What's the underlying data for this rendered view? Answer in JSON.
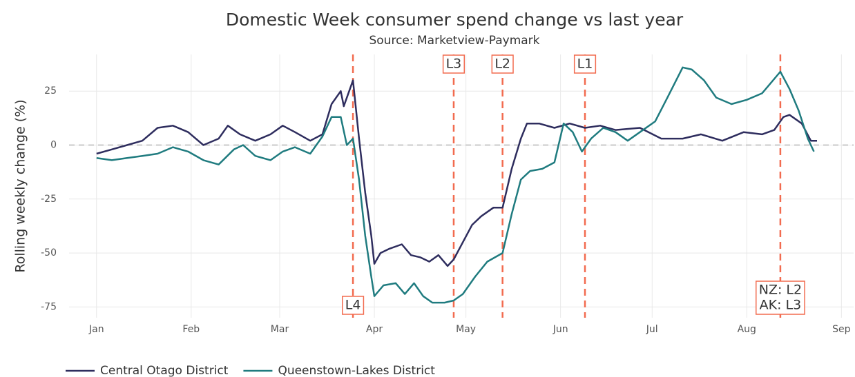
{
  "chart_data": {
    "type": "line",
    "title": "Domestic Week consumer spend change vs last year",
    "subtitle": "Source: Marketview-Paymark",
    "y_label": "Rolling weekly change (%)",
    "xlim": [
      -9,
      248
    ],
    "ylim": [
      -80,
      42
    ],
    "xticks": [
      {
        "value": 0,
        "label": "Jan"
      },
      {
        "value": 31,
        "label": "Feb"
      },
      {
        "value": 60,
        "label": "Mar"
      },
      {
        "value": 91,
        "label": "Apr"
      },
      {
        "value": 121,
        "label": "May"
      },
      {
        "value": 152,
        "label": "Jun"
      },
      {
        "value": 182,
        "label": "Jul"
      },
      {
        "value": 213,
        "label": "Aug"
      },
      {
        "value": 244,
        "label": "Sep"
      }
    ],
    "yticks": [
      -75,
      -50,
      -25,
      0,
      25
    ],
    "grid": true,
    "hline": 0,
    "annotations": [
      {
        "x": 84,
        "label": [
          "L4"
        ],
        "position": "bottom"
      },
      {
        "x": 117,
        "label": [
          "L3"
        ],
        "position": "top"
      },
      {
        "x": 133,
        "label": [
          "L2"
        ],
        "position": "top"
      },
      {
        "x": 160,
        "label": [
          "L1"
        ],
        "position": "top"
      },
      {
        "x": 224,
        "label": [
          "NZ: L2",
          "AK: L3"
        ],
        "position": "bottom"
      }
    ],
    "annotation_color": "#f26b4f",
    "legend": "bottom",
    "series": [
      {
        "name": "Central Otago District",
        "color": "#2e2d5e",
        "x": [
          0,
          5,
          10,
          15,
          20,
          25,
          30,
          35,
          40,
          43,
          47,
          52,
          57,
          61,
          65,
          70,
          74,
          77,
          80,
          81,
          83,
          84,
          86,
          88,
          90,
          91,
          93,
          96,
          100,
          103,
          106,
          109,
          112,
          115,
          117,
          120,
          123,
          126,
          130,
          133,
          136,
          139,
          141,
          145,
          150,
          155,
          160,
          165,
          170,
          178,
          185,
          192,
          198,
          205,
          212,
          218,
          222,
          225,
          227,
          231,
          234,
          236
        ],
        "values": [
          -4,
          -2,
          0,
          2,
          8,
          9,
          6,
          0,
          3,
          9,
          5,
          2,
          5,
          9,
          6,
          2,
          5,
          19,
          25,
          18,
          26,
          30,
          3,
          -22,
          -42,
          -55,
          -50,
          -48,
          -46,
          -51,
          -52,
          -54,
          -51,
          -56,
          -53,
          -45,
          -37,
          -33,
          -29,
          -29,
          -11,
          3,
          10,
          10,
          8,
          10,
          8,
          9,
          7,
          8,
          3,
          3,
          5,
          2,
          6,
          5,
          7,
          13,
          14,
          10,
          2,
          2
        ]
      },
      {
        "name": "Queenstown-Lakes District",
        "color": "#1f7b7f",
        "x": [
          0,
          5,
          10,
          15,
          20,
          25,
          30,
          35,
          40,
          45,
          48,
          52,
          57,
          61,
          65,
          70,
          74,
          77,
          80,
          82,
          84,
          86,
          88,
          90,
          91,
          94,
          98,
          101,
          104,
          107,
          110,
          114,
          117,
          120,
          124,
          128,
          133,
          136,
          139,
          142,
          146,
          150,
          153,
          156,
          159,
          162,
          166,
          170,
          174,
          178,
          183,
          187,
          192,
          195,
          199,
          203,
          208,
          213,
          218,
          221,
          224,
          227,
          230,
          233,
          235
        ],
        "values": [
          -6,
          -7,
          -6,
          -5,
          -4,
          -1,
          -3,
          -7,
          -9,
          -2,
          0,
          -5,
          -7,
          -3,
          -1,
          -4,
          4,
          13,
          13,
          0,
          3,
          -16,
          -42,
          -61,
          -70,
          -65,
          -64,
          -69,
          -64,
          -70,
          -73,
          -73,
          -72,
          -69,
          -61,
          -54,
          -50,
          -32,
          -16,
          -12,
          -11,
          -8,
          10,
          6,
          -3,
          3,
          8,
          6,
          2,
          6,
          11,
          22,
          36,
          35,
          30,
          22,
          19,
          21,
          24,
          29,
          34,
          26,
          16,
          3,
          -3
        ]
      }
    ]
  }
}
